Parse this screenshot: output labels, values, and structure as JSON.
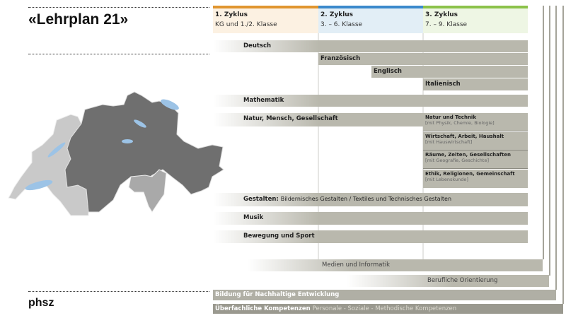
{
  "title": "«Lehrplan 21»",
  "logo": "phsz",
  "cycles": [
    {
      "name": "1. Zyklus",
      "grades": "KG und 1./2. Klasse",
      "color": "#e0952f",
      "bg": "#fcf1e2"
    },
    {
      "name": "2. Zyklus",
      "grades": "3. – 6. Klasse",
      "color": "#3a89cc",
      "bg": "#e2eef6"
    },
    {
      "name": "3. Zyklus",
      "grades": "7. – 9. Klasse",
      "color": "#8cc24a",
      "bg": "#eef6e4"
    }
  ],
  "subjects": {
    "deutsch": "Deutsch",
    "franzoesisch": "Französisch",
    "englisch": "Englisch",
    "italienisch": "Italienisch",
    "mathematik": "Mathematik",
    "nmg": "Natur, Mensch, Gesellschaft",
    "nmg_sub": [
      {
        "name": "Natur und Technik",
        "note": "[mit Physik, Chemie, Biologie]"
      },
      {
        "name": "Wirtschaft, Arbeit, Haushalt",
        "note": "[mit Hauswirtschaft]"
      },
      {
        "name": "Räume, Zeiten, Gesellschaften",
        "note": "[mit Geografie, Geschichte]"
      },
      {
        "name": "Ethik, Religionen, Gemeinschaft",
        "note": "[mit Lebenskunde]"
      }
    ],
    "gestalten": "Gestalten:",
    "gestalten_detail": "Bildernisches Gestalten / Textiles und Technisches Gestalten",
    "musik": "Musik",
    "sport": "Bewegung und Sport"
  },
  "cross": {
    "medien": "Medien und Informatik",
    "berufliche": "Berufliche Orientierung",
    "bne": "Bildung für Nachhaltige Entwicklung",
    "ueberfachlich": "Überfachliche Kompetenzen",
    "ueberfachlich_detail": "Personale - Soziale - Methodische Kompetenzen"
  }
}
